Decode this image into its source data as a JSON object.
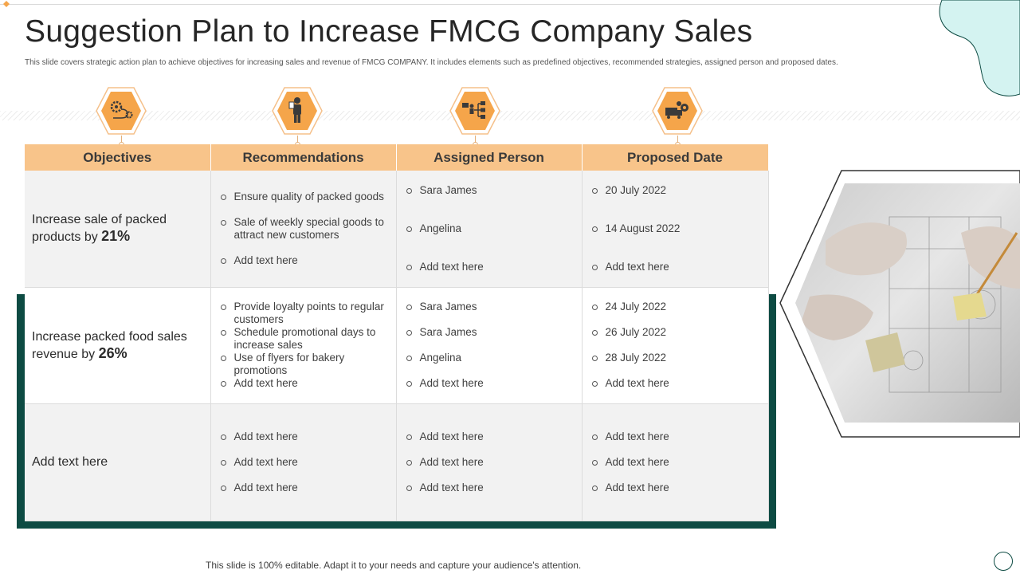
{
  "title": "Suggestion Plan to Increase FMCG Company Sales",
  "subtitle": "This slide covers strategic action plan to achieve objectives for increasing sales and revenue of FMCG  COMPANY.  It includes elements such as predefined objectives, recommended strategies, assigned person and proposed dates.",
  "colors": {
    "header": "#f8c48a",
    "accent_dark": "#0d4b43",
    "icon_orange": "#f5a54a",
    "teal_blob": "#d4f3f1"
  },
  "icons": [
    "gear-process-icon",
    "person-presentation-icon",
    "org-hierarchy-icon",
    "delivery-truck-icon"
  ],
  "headers": [
    "Objectives",
    "Recommendations",
    "Assigned Person",
    "Proposed Date"
  ],
  "rows": [
    {
      "objective_text": "Increase sale of packed products by ",
      "objective_pct": "21%",
      "recommendations": [
        "Ensure quality of packed goods",
        "Sale of weekly special goods to attract new customers",
        "Add text here"
      ],
      "persons": [
        "Sara James",
        "Angelina",
        "Add text here"
      ],
      "dates": [
        "20 July 2022",
        "14 August 2022",
        "Add text here"
      ]
    },
    {
      "objective_text": "Increase packed food sales revenue by ",
      "objective_pct": "26%",
      "recommendations": [
        "Provide loyalty points to regular customers",
        "Schedule promotional days to increase sales",
        "Use of flyers for bakery promotions",
        "Add text here"
      ],
      "persons": [
        "Sara James",
        "Sara James",
        "Angelina",
        "Add text here"
      ],
      "dates": [
        "24 July 2022",
        "26 July 2022",
        "28 July 2022",
        "Add text here"
      ]
    },
    {
      "objective_text": "Add text here",
      "objective_pct": "",
      "recommendations": [
        "Add text here",
        "Add text here",
        "Add text here"
      ],
      "persons": [
        "Add text here",
        "Add text here",
        "Add text here"
      ],
      "dates": [
        "Add text here",
        "Add text here",
        "Add text here"
      ]
    }
  ],
  "footer": "This slide is 100% editable. Adapt it to your needs and capture your audience's attention."
}
